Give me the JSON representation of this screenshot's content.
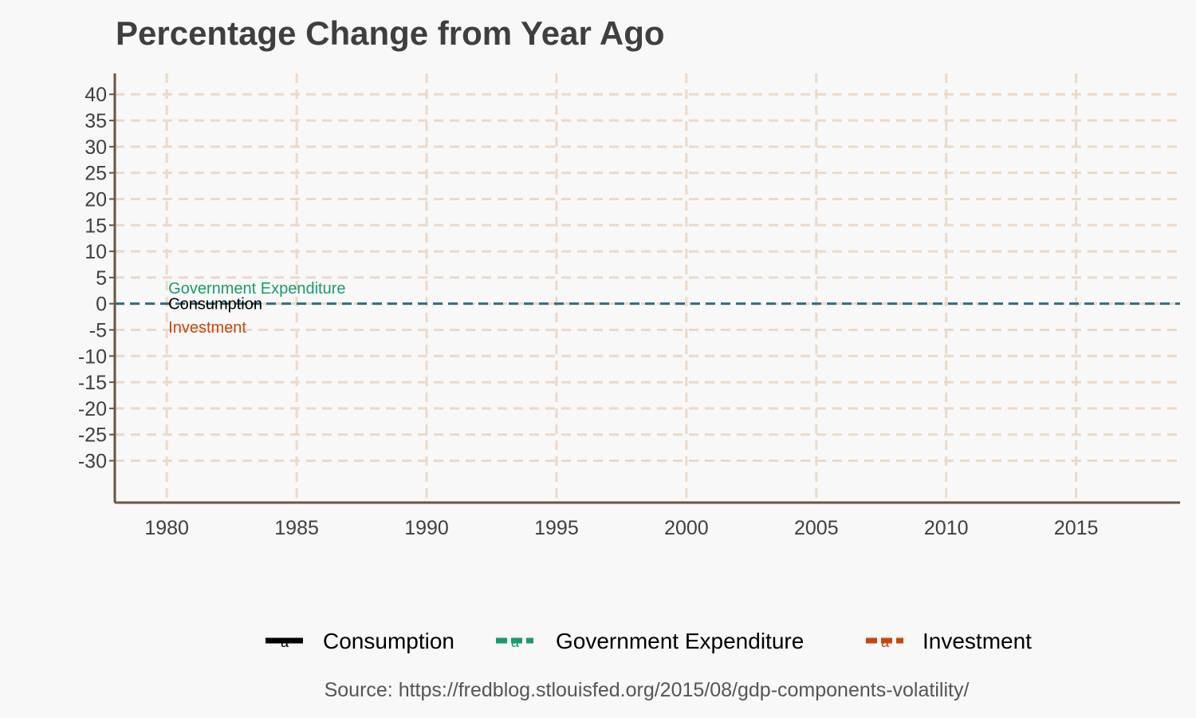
{
  "chart_data": {
    "type": "line",
    "title": "Percentage Change from Year Ago",
    "subtitle": "",
    "xlabel": "",
    "ylabel": "",
    "caption": "Source: https://fredblog.stlouisfed.org/2015/08/gdp-components-volatility/",
    "xlim": [
      1978,
      2019
    ],
    "ylim": [
      -38,
      44
    ],
    "x_ticks": [
      1980,
      1985,
      1990,
      1995,
      2000,
      2005,
      2010,
      2015
    ],
    "y_ticks": [
      40,
      35,
      30,
      25,
      20,
      15,
      10,
      5,
      0,
      -5,
      -10,
      -15,
      -20,
      -25,
      -30
    ],
    "grid": true,
    "legend_position": "bottom",
    "reference_line": {
      "y": 0,
      "color": "#2a6f86"
    },
    "series": [
      {
        "name": "Consumption",
        "color": "#000000",
        "label_x": 1980,
        "label_y": 0,
        "x": [],
        "values": []
      },
      {
        "name": "Government Expenditure",
        "color": "#1a9a6c",
        "label_x": 1980,
        "label_y": 3,
        "x": [],
        "values": []
      },
      {
        "name": "Investment",
        "color": "#c8470c",
        "label_x": 1980,
        "label_y": -4.5,
        "x": [],
        "values": []
      }
    ],
    "legend_key_text": "a",
    "colors": {
      "background": "#f8f8f8",
      "grid": "#ecd9c8",
      "axis": "#6b5443",
      "text": "#3f3f3f"
    }
  }
}
